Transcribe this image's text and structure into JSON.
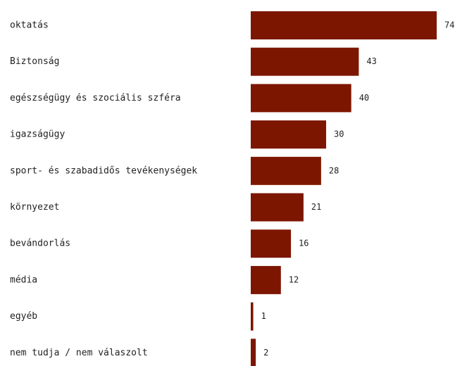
{
  "chart_data": {
    "type": "bar",
    "orientation": "horizontal",
    "categories": [
      "oktatás",
      "Biztonság",
      "egészségügy és szociális szféra",
      "igazságügy",
      "sport- és szabadidős tevékenységek",
      "környezet",
      "bevándorlás",
      "média",
      "egyéb",
      "nem tudja / nem válaszolt"
    ],
    "values": [
      74,
      43,
      40,
      30,
      28,
      21,
      16,
      12,
      1,
      2
    ],
    "title": "",
    "xlabel": "",
    "ylabel": "",
    "xlim": [
      0,
      74
    ],
    "grid": false,
    "legend": "none",
    "colors": {
      "bar": "#7d1600",
      "text": "#222222",
      "background": "#ffffff"
    }
  }
}
